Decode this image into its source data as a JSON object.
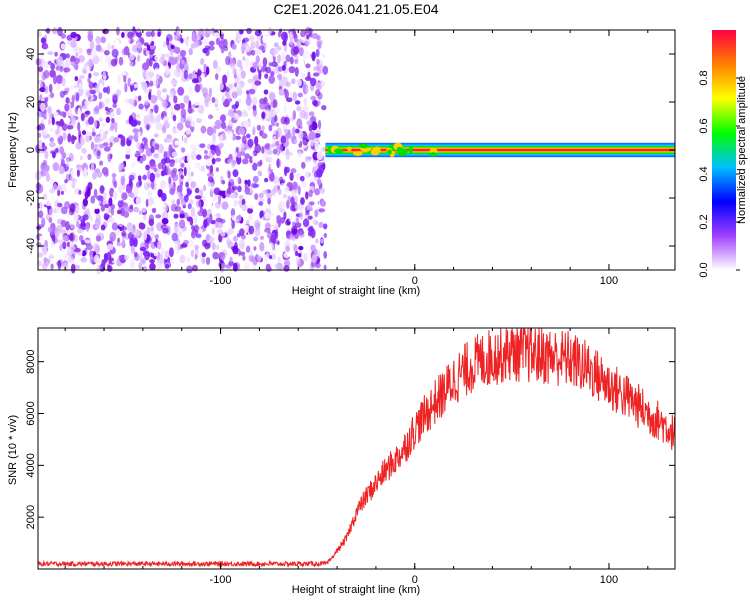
{
  "title": "C2E1.2026.041.21.05.E04",
  "chart_data": [
    {
      "type": "heatmap",
      "xlabel": "Height of straight line (km)",
      "ylabel": "Frequency (Hz)",
      "xlim": [
        -194,
        134
      ],
      "ylim": [
        -50,
        50
      ],
      "xticks": [
        -100,
        0,
        100
      ],
      "yticks": [
        -40,
        -20,
        0,
        20,
        40
      ],
      "colorbar": {
        "label": "Normalized spectral amplitude",
        "range": [
          0,
          1
        ],
        "ticks": [
          "0.0",
          "0.2",
          "0.4",
          "0.6",
          "0.8"
        ],
        "colormap": [
          "#ffffff",
          "#a040ff",
          "#0000ff",
          "#00c0ff",
          "#00ff00",
          "#ffff00",
          "#ff8000",
          "#ff0040"
        ]
      },
      "features": {
        "noise_region_km": [
          -194,
          -46
        ],
        "peak_line_frequency_hz": 0,
        "peak_line_start_km": -46,
        "peak_line_width_hz": 3
      },
      "grid": false
    },
    {
      "type": "line",
      "xlabel": "Height of straight line (km)",
      "ylabel": "SNR (10 * v/v)",
      "xlim": [
        -194,
        134
      ],
      "ylim": [
        0,
        9300
      ],
      "xticks": [
        -100,
        0,
        100
      ],
      "yticks": [
        2000,
        4000,
        6000,
        8000
      ],
      "series": [
        {
          "color": "#ee2222",
          "x": [
            -194,
            -150,
            -100,
            -60,
            -45,
            -35,
            -30,
            -25,
            -20,
            -15,
            -10,
            -5,
            0,
            5,
            10,
            15,
            20,
            30,
            40,
            50,
            60,
            70,
            80,
            90,
            100,
            110,
            120,
            128,
            134
          ],
          "values": [
            200,
            200,
            200,
            200,
            200,
            1200,
            2200,
            2800,
            3300,
            3800,
            4200,
            4700,
            5400,
            5900,
            6400,
            6800,
            7300,
            7900,
            8200,
            8400,
            8300,
            8200,
            8100,
            7700,
            7100,
            6600,
            6000,
            5600,
            5200
          ]
        }
      ],
      "grid": false
    }
  ]
}
